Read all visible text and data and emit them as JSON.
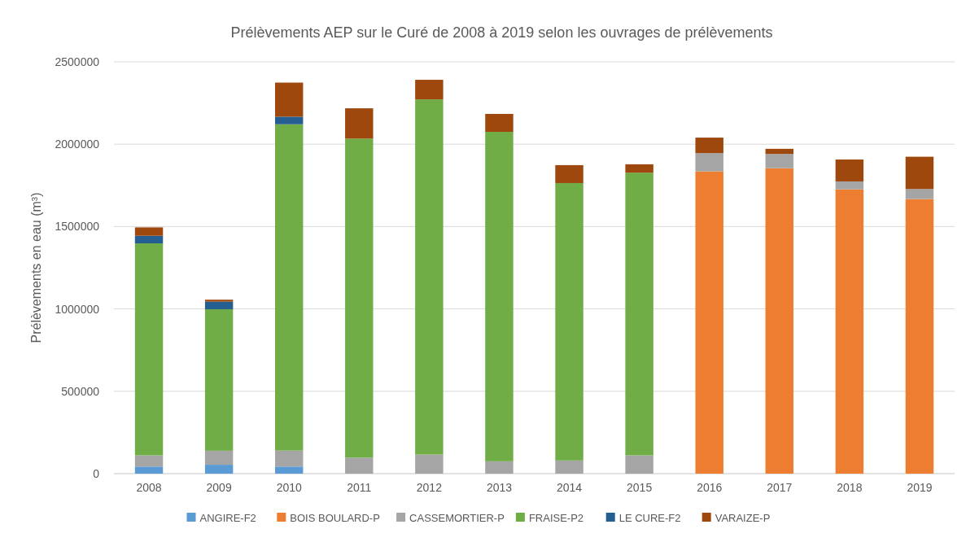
{
  "chart_data": {
    "type": "bar",
    "stacked": true,
    "title": "Prélèvements  AEP sur le Curé de 2008 à 2019 selon les ouvrages de prélèvements",
    "ylabel": "Prélèvements en eau (m³)",
    "categories": [
      "2008",
      "2009",
      "2010",
      "2011",
      "2012",
      "2013",
      "2014",
      "2015",
      "2016",
      "2017",
      "2018",
      "2019"
    ],
    "series": [
      {
        "name": "ANGIRE-F2",
        "color": "#5b9bd5",
        "values": [
          43000,
          54000,
          43000,
          0,
          0,
          0,
          0,
          0,
          0,
          0,
          0,
          0
        ]
      },
      {
        "name": "BOIS BOULARD-P",
        "color": "#ed7d31",
        "values": [
          0,
          0,
          0,
          0,
          0,
          0,
          0,
          0,
          1835000,
          1854000,
          1726000,
          1667000
        ]
      },
      {
        "name": "CASSEMORTIER-P",
        "color": "#a5a5a5",
        "values": [
          68000,
          85000,
          97000,
          97000,
          116000,
          75000,
          80000,
          111000,
          111000,
          87000,
          48000,
          61000
        ]
      },
      {
        "name": "FRAISE-P2",
        "color": "#70ad47",
        "values": [
          1287000,
          859000,
          1981000,
          1937000,
          2156000,
          2000000,
          1684000,
          1716000,
          0,
          0,
          0,
          0
        ]
      },
      {
        "name": "LE CURE-F2",
        "color": "#255e91",
        "values": [
          46000,
          46000,
          46000,
          0,
          0,
          0,
          0,
          0,
          0,
          0,
          0,
          0
        ]
      },
      {
        "name": "VARAIZE-P",
        "color": "#9e480e",
        "values": [
          51000,
          12000,
          207000,
          184000,
          119000,
          109000,
          109000,
          51000,
          94000,
          31000,
          133000,
          196000
        ]
      }
    ],
    "ylim": [
      0,
      2500000
    ],
    "yticks": [
      0,
      500000,
      1000000,
      1500000,
      2000000,
      2500000
    ],
    "grid": "y",
    "legend": "bottom"
  }
}
